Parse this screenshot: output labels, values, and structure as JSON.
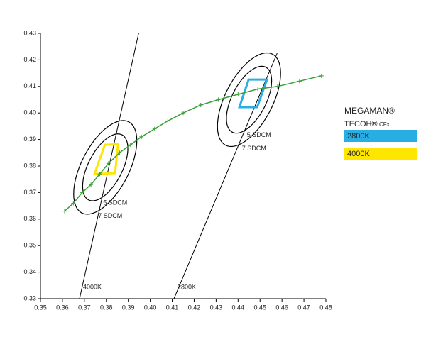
{
  "chart_data": {
    "type": "line",
    "xlim": [
      0.35,
      0.48
    ],
    "ylim": [
      0.33,
      0.43
    ],
    "xticks": [
      0.35,
      0.36,
      0.37,
      0.38,
      0.39,
      {
        "value": 0.4,
        "label": "0.40"
      },
      0.41,
      0.42,
      0.43,
      0.44,
      0.45,
      0.46,
      0.47,
      0.48
    ],
    "yticks": [
      0.33,
      0.34,
      0.35,
      0.36,
      0.37,
      0.38,
      0.39,
      {
        "value": 0.4,
        "label": "0.40"
      },
      0.41,
      0.42,
      0.43
    ],
    "locus": {
      "color": "#3a9e3a",
      "x": [
        0.361,
        0.365,
        0.369,
        0.373,
        0.377,
        0.381,
        0.386,
        0.391,
        0.396,
        0.402,
        0.408,
        0.415,
        0.423,
        0.431,
        0.44,
        0.449,
        0.458,
        0.468,
        0.478
      ],
      "y": [
        0.363,
        0.366,
        0.37,
        0.373,
        0.377,
        0.381,
        0.385,
        0.388,
        0.391,
        0.394,
        0.397,
        0.4,
        0.403,
        0.405,
        0.407,
        0.409,
        0.41,
        0.412,
        0.414
      ]
    },
    "isotherms": [
      {
        "label": "4000K",
        "x": [
          0.3678,
          0.3947
        ],
        "y": [
          0.33,
          0.43
        ]
      },
      {
        "label": "2800K",
        "x": [
          0.4108,
          0.4578
        ],
        "y": [
          0.33,
          0.4225
        ]
      }
    ],
    "legend": {
      "title": "MEGAMAN®",
      "subtitle": "TECOH®",
      "subtitle_suffix": "CFx"
    },
    "targets": [
      {
        "name": "2800K",
        "color": "#29aee3",
        "quad_x": [
          0.4406,
          0.4448,
          0.4532,
          0.4487
        ],
        "quad_y": [
          0.4022,
          0.4126,
          0.4126,
          0.4022
        ],
        "ellipses": [
          {
            "label": "5 SDCM",
            "cx": 0.445,
            "cy": 0.405,
            "a": 0.0145,
            "b": 0.0074,
            "angle": 55
          },
          {
            "label": "7 SDCM",
            "cx": 0.445,
            "cy": 0.405,
            "a": 0.0203,
            "b": 0.0103,
            "angle": 55
          }
        ]
      },
      {
        "name": "4000K",
        "color": "#ffe600",
        "quad_x": [
          0.3746,
          0.3793,
          0.3853,
          0.384
        ],
        "quad_y": [
          0.377,
          0.388,
          0.3882,
          0.3773
        ],
        "ellipses": [
          {
            "label": "5 SDCM",
            "cx": 0.3795,
            "cy": 0.3795,
            "a": 0.0145,
            "b": 0.0074,
            "angle": 55
          },
          {
            "label": "7 SDCM",
            "cx": 0.3795,
            "cy": 0.3795,
            "a": 0.0203,
            "b": 0.0103,
            "angle": 55
          }
        ]
      }
    ]
  }
}
